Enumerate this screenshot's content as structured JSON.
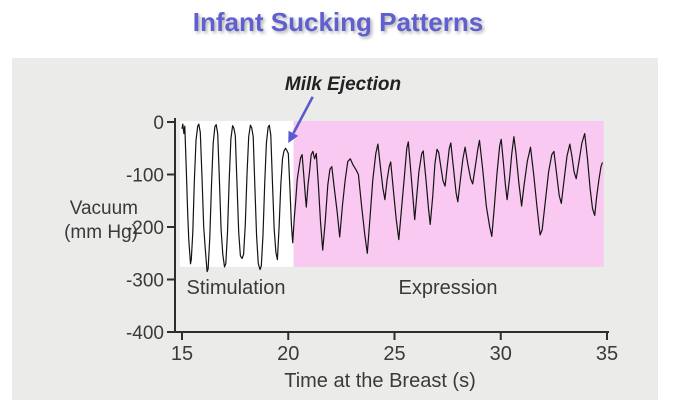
{
  "title": "Infant Sucking Patterns",
  "colors": {
    "title_text": "#5f5fd0",
    "panel_background": "#ebebea",
    "stimulation_region": "#ffffff",
    "expression_region": "#f9c9f2",
    "trace": "#141414",
    "axis": "#2e2e2e",
    "arrow": "#5a5ad0",
    "label_text": "#3a3a3a"
  },
  "chart_data": {
    "type": "line",
    "title": "Infant Sucking Patterns",
    "xlabel": "Time at the Breast (s)",
    "ylabel_lines": [
      "Vacuum",
      "(mm Hg)"
    ],
    "xlim": [
      15,
      35
    ],
    "ylim": [
      -400,
      0
    ],
    "x_ticks": [
      15,
      20,
      25,
      30,
      35
    ],
    "y_ticks": [
      0,
      -100,
      -200,
      -300,
      -400
    ],
    "grid": false,
    "regions": [
      {
        "label": "Stimulation",
        "t_start": 14.9,
        "t_end": 20.25,
        "v_top": 2,
        "v_bottom": -276,
        "color": "#ffffff"
      },
      {
        "label": "Expression",
        "t_start": 20.25,
        "t_end": 34.85,
        "v_top": 2,
        "v_bottom": -276,
        "color": "#f9c9f2"
      }
    ],
    "annotation": {
      "label": "Milk Ejection",
      "arrow_from_t": 21.15,
      "arrow_from_v": 48,
      "arrow_to_t": 20.0,
      "arrow_to_v": -40,
      "color": "#5a5ad0"
    },
    "series": [
      {
        "name": "intraoral-vacuum-trace",
        "color": "#141414",
        "points": [
          [
            15.0,
            -12
          ],
          [
            15.04,
            -4
          ],
          [
            15.09,
            -22
          ],
          [
            15.13,
            -8
          ],
          [
            15.2,
            -85
          ],
          [
            15.27,
            -175
          ],
          [
            15.32,
            -225
          ],
          [
            15.4,
            -270
          ],
          [
            15.44,
            -262
          ],
          [
            15.51,
            -210
          ],
          [
            15.58,
            -115
          ],
          [
            15.66,
            -35
          ],
          [
            15.74,
            -8
          ],
          [
            15.79,
            -4
          ],
          [
            15.86,
            -20
          ],
          [
            15.94,
            -105
          ],
          [
            16.02,
            -200
          ],
          [
            16.1,
            -245
          ],
          [
            16.18,
            -285
          ],
          [
            16.23,
            -280
          ],
          [
            16.31,
            -220
          ],
          [
            16.39,
            -120
          ],
          [
            16.47,
            -40
          ],
          [
            16.55,
            -9
          ],
          [
            16.61,
            -5
          ],
          [
            16.68,
            -22
          ],
          [
            16.76,
            -110
          ],
          [
            16.84,
            -205
          ],
          [
            16.92,
            -252
          ],
          [
            17.0,
            -276
          ],
          [
            17.06,
            -270
          ],
          [
            17.14,
            -210
          ],
          [
            17.22,
            -110
          ],
          [
            17.3,
            -32
          ],
          [
            17.38,
            -7
          ],
          [
            17.44,
            -12
          ],
          [
            17.51,
            -26
          ],
          [
            17.59,
            -118
          ],
          [
            17.67,
            -210
          ],
          [
            17.75,
            -255
          ],
          [
            17.83,
            -260
          ],
          [
            17.9,
            -252
          ],
          [
            17.98,
            -195
          ],
          [
            18.06,
            -100
          ],
          [
            18.14,
            -28
          ],
          [
            18.22,
            -6
          ],
          [
            18.28,
            -11
          ],
          [
            18.35,
            -28
          ],
          [
            18.43,
            -125
          ],
          [
            18.51,
            -218
          ],
          [
            18.59,
            -270
          ],
          [
            18.67,
            -281
          ],
          [
            18.73,
            -274
          ],
          [
            18.81,
            -215
          ],
          [
            18.89,
            -118
          ],
          [
            18.97,
            -40
          ],
          [
            19.05,
            -10
          ],
          [
            19.11,
            -6
          ],
          [
            19.18,
            -25
          ],
          [
            19.26,
            -118
          ],
          [
            19.34,
            -205
          ],
          [
            19.42,
            -248
          ],
          [
            19.49,
            -262
          ],
          [
            19.57,
            -200
          ],
          [
            19.65,
            -120
          ],
          [
            19.73,
            -70
          ],
          [
            19.8,
            -55
          ],
          [
            19.87,
            -50
          ],
          [
            19.93,
            -54
          ],
          [
            20.0,
            -60
          ],
          [
            20.08,
            -125
          ],
          [
            20.15,
            -195
          ],
          [
            20.21,
            -230
          ],
          [
            20.28,
            -185
          ],
          [
            20.35,
            -150
          ],
          [
            20.42,
            -110
          ],
          [
            20.5,
            -88
          ],
          [
            20.58,
            -68
          ],
          [
            20.65,
            -62
          ],
          [
            20.72,
            -95
          ],
          [
            20.8,
            -140
          ],
          [
            20.85,
            -162
          ],
          [
            20.93,
            -120
          ],
          [
            21.0,
            -95
          ],
          [
            21.08,
            -62
          ],
          [
            21.16,
            -56
          ],
          [
            21.24,
            -70
          ],
          [
            21.32,
            -60
          ],
          [
            21.42,
            -120
          ],
          [
            21.52,
            -190
          ],
          [
            21.62,
            -244
          ],
          [
            21.74,
            -190
          ],
          [
            21.86,
            -120
          ],
          [
            21.96,
            -90
          ],
          [
            22.05,
            -85
          ],
          [
            22.15,
            -120
          ],
          [
            22.3,
            -170
          ],
          [
            22.42,
            -219
          ],
          [
            22.55,
            -160
          ],
          [
            22.68,
            -110
          ],
          [
            22.8,
            -75
          ],
          [
            22.92,
            -70
          ],
          [
            23.05,
            -82
          ],
          [
            23.18,
            -90
          ],
          [
            23.3,
            -100
          ],
          [
            23.45,
            -160
          ],
          [
            23.6,
            -215
          ],
          [
            23.72,
            -250
          ],
          [
            23.85,
            -180
          ],
          [
            23.98,
            -110
          ],
          [
            24.12,
            -60
          ],
          [
            24.22,
            -42
          ],
          [
            24.32,
            -80
          ],
          [
            24.45,
            -125
          ],
          [
            24.55,
            -148
          ],
          [
            24.65,
            -110
          ],
          [
            24.75,
            -85
          ],
          [
            24.82,
            -76
          ],
          [
            24.95,
            -130
          ],
          [
            25.08,
            -185
          ],
          [
            25.2,
            -224
          ],
          [
            25.32,
            -170
          ],
          [
            25.45,
            -110
          ],
          [
            25.58,
            -50
          ],
          [
            25.65,
            -38
          ],
          [
            25.75,
            -85
          ],
          [
            25.88,
            -150
          ],
          [
            25.95,
            -186
          ],
          [
            26.05,
            -140
          ],
          [
            26.15,
            -95
          ],
          [
            26.28,
            -60
          ],
          [
            26.35,
            -55
          ],
          [
            26.48,
            -110
          ],
          [
            26.6,
            -165
          ],
          [
            26.68,
            -195
          ],
          [
            26.8,
            -140
          ],
          [
            26.9,
            -80
          ],
          [
            27.0,
            -52
          ],
          [
            27.08,
            -58
          ],
          [
            27.18,
            -85
          ],
          [
            27.28,
            -112
          ],
          [
            27.38,
            -122
          ],
          [
            27.48,
            -85
          ],
          [
            27.58,
            -50
          ],
          [
            27.65,
            -40
          ],
          [
            27.78,
            -90
          ],
          [
            27.9,
            -135
          ],
          [
            27.98,
            -152
          ],
          [
            28.1,
            -110
          ],
          [
            28.22,
            -70
          ],
          [
            28.32,
            -48
          ],
          [
            28.45,
            -80
          ],
          [
            28.58,
            -108
          ],
          [
            28.68,
            -118
          ],
          [
            28.8,
            -85
          ],
          [
            28.92,
            -52
          ],
          [
            29.0,
            -35
          ],
          [
            29.15,
            -90
          ],
          [
            29.32,
            -160
          ],
          [
            29.48,
            -200
          ],
          [
            29.58,
            -218
          ],
          [
            29.7,
            -160
          ],
          [
            29.82,
            -100
          ],
          [
            29.95,
            -45
          ],
          [
            30.02,
            -33
          ],
          [
            30.12,
            -75
          ],
          [
            30.22,
            -120
          ],
          [
            30.3,
            -148
          ],
          [
            30.42,
            -105
          ],
          [
            30.52,
            -60
          ],
          [
            30.62,
            -28
          ],
          [
            30.72,
            -60
          ],
          [
            30.85,
            -115
          ],
          [
            30.98,
            -160
          ],
          [
            31.1,
            -120
          ],
          [
            31.25,
            -75
          ],
          [
            31.4,
            -48
          ],
          [
            31.55,
            -100
          ],
          [
            31.7,
            -160
          ],
          [
            31.85,
            -215
          ],
          [
            31.95,
            -205
          ],
          [
            32.1,
            -150
          ],
          [
            32.25,
            -95
          ],
          [
            32.4,
            -62
          ],
          [
            32.5,
            -56
          ],
          [
            32.62,
            -95
          ],
          [
            32.75,
            -140
          ],
          [
            32.85,
            -155
          ],
          [
            32.98,
            -110
          ],
          [
            33.12,
            -65
          ],
          [
            33.25,
            -42
          ],
          [
            33.35,
            -65
          ],
          [
            33.45,
            -95
          ],
          [
            33.55,
            -108
          ],
          [
            33.68,
            -75
          ],
          [
            33.82,
            -40
          ],
          [
            33.95,
            -22
          ],
          [
            34.08,
            -70
          ],
          [
            34.2,
            -125
          ],
          [
            34.32,
            -165
          ],
          [
            34.42,
            -178
          ],
          [
            34.52,
            -140
          ],
          [
            34.62,
            -110
          ],
          [
            34.72,
            -85
          ],
          [
            34.78,
            -78
          ]
        ]
      }
    ]
  }
}
